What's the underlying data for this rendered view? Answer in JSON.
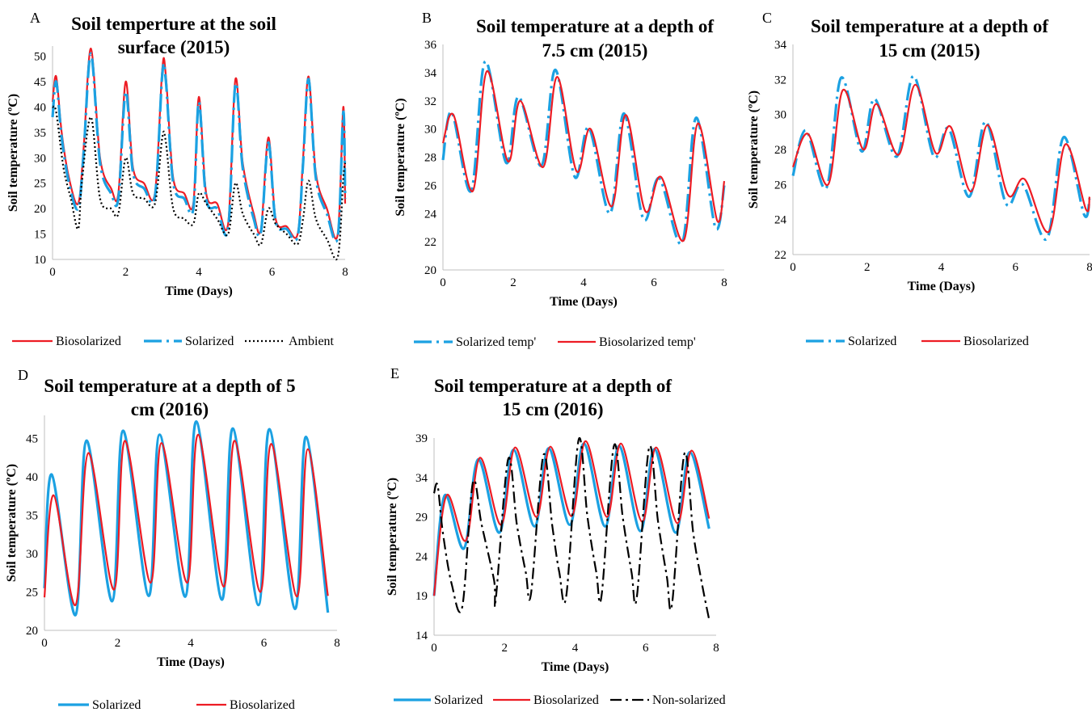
{
  "colors": {
    "biosolarized": "#ed1c24",
    "solarized": "#1ba1e2",
    "ambient": "#000000",
    "axis": "#bfbfbf"
  },
  "chart_data": [
    {
      "panel": "A",
      "type": "line",
      "title_lines": [
        "Soil temperture at the soil",
        "surface (2015)"
      ],
      "xlabel": "Time (Days)",
      "ylabel": "Soil temperature (ºC)",
      "xlim": [
        0,
        8
      ],
      "ylim": [
        10,
        52
      ],
      "xticks": [
        0,
        2,
        4,
        6,
        8
      ],
      "yticks": [
        10,
        15,
        20,
        25,
        30,
        35,
        40,
        45,
        50
      ],
      "grid": false,
      "legend_position": "bottom",
      "series": [
        {
          "name": "Biosolarized",
          "color_key": "biosolarized",
          "dash": "solid",
          "x": [
            0,
            0.1,
            0.25,
            0.45,
            0.7,
            0.85,
            1.05,
            1.3,
            1.6,
            1.8,
            2.0,
            2.2,
            2.5,
            2.8,
            3.0,
            3.1,
            3.3,
            3.6,
            3.85,
            4.0,
            4.2,
            4.5,
            4.8,
            5.0,
            5.2,
            5.5,
            5.7,
            5.9,
            6.1,
            6.4,
            6.7,
            6.85,
            7.0,
            7.2,
            7.5,
            7.8,
            7.95,
            8.0
          ],
          "y": [
            41,
            46,
            35,
            26,
            21,
            32,
            51.5,
            30,
            24,
            23,
            45,
            28,
            25,
            23,
            47.5,
            46,
            26,
            23,
            21,
            42,
            23,
            21,
            17,
            45.5,
            29,
            19,
            16,
            34,
            18,
            16.5,
            15,
            30,
            46,
            27,
            20,
            15,
            40,
            21
          ]
        },
        {
          "name": "Solarized",
          "color_key": "solarized",
          "dash": "long-dash-dot",
          "x": [
            0,
            0.1,
            0.25,
            0.45,
            0.7,
            0.85,
            1.05,
            1.3,
            1.6,
            1.8,
            2.0,
            2.2,
            2.5,
            2.8,
            3.0,
            3.1,
            3.3,
            3.6,
            3.85,
            4.0,
            4.2,
            4.5,
            4.8,
            5.0,
            5.2,
            5.5,
            5.7,
            5.9,
            6.1,
            6.4,
            6.7,
            6.85,
            7.0,
            7.2,
            7.5,
            7.8,
            7.95,
            8.0
          ],
          "y": [
            38,
            45,
            34,
            25,
            20,
            31,
            50.5,
            29,
            23,
            22,
            43,
            27,
            24,
            22.5,
            46.5,
            45,
            25,
            22,
            20,
            41,
            22,
            20,
            16,
            44.5,
            28,
            18,
            15.5,
            33,
            17.5,
            16,
            14.5,
            29,
            45.5,
            26,
            19,
            14.5,
            39,
            22
          ]
        },
        {
          "name": "Ambient",
          "color_key": "ambient",
          "dash": "dotted",
          "x": [
            0,
            0.1,
            0.3,
            0.5,
            0.7,
            0.8,
            1.05,
            1.3,
            1.6,
            1.8,
            2.0,
            2.2,
            2.5,
            2.8,
            3.0,
            3.1,
            3.3,
            3.6,
            3.85,
            4.0,
            4.2,
            4.5,
            4.8,
            5.0,
            5.2,
            5.5,
            5.7,
            5.9,
            6.1,
            6.4,
            6.7,
            6.85,
            7.0,
            7.2,
            7.5,
            7.8,
            7.95,
            8.0
          ],
          "y": [
            40,
            39,
            28,
            22,
            16,
            25,
            38,
            22,
            20,
            19,
            30,
            23,
            22,
            21,
            34,
            33,
            20,
            18,
            17,
            23,
            21,
            18,
            15,
            25,
            19,
            15,
            13,
            20,
            17,
            15,
            13,
            18,
            25.5,
            18,
            14,
            10.5,
            26,
            29
          ]
        }
      ]
    },
    {
      "panel": "B",
      "type": "line",
      "title_lines": [
        "Soil temperature at a depth of",
        "7.5 cm (2015)"
      ],
      "xlabel": "Time (Days)",
      "ylabel": "Soil temperature (ºC)",
      "xlim": [
        0,
        8
      ],
      "ylim": [
        20,
        36
      ],
      "xticks": [
        0,
        2,
        4,
        6,
        8
      ],
      "yticks": [
        20,
        22,
        24,
        26,
        28,
        30,
        32,
        34,
        36
      ],
      "grid": false,
      "legend_position": "bottom",
      "series": [
        {
          "name": "Solarized temp'",
          "color_key": "solarized",
          "dash": "long-dash-dot",
          "x": [
            0,
            0.25,
            0.8,
            1.2,
            1.8,
            2.15,
            2.8,
            3.2,
            3.75,
            4.15,
            4.75,
            5.15,
            5.7,
            6.15,
            6.8,
            7.2,
            7.75,
            8.0
          ],
          "y": [
            27.8,
            31.2,
            25.6,
            34.8,
            27.6,
            32.3,
            27.4,
            34.2,
            26.6,
            30.1,
            24.0,
            31.1,
            23.6,
            26.5,
            21.9,
            30.8,
            23.0,
            26.0
          ]
        },
        {
          "name": "Biosolarized temp'",
          "color_key": "biosolarized",
          "dash": "solid",
          "x": [
            0,
            0.3,
            0.85,
            1.25,
            1.85,
            2.2,
            2.85,
            3.25,
            3.8,
            4.2,
            4.8,
            5.2,
            5.75,
            6.2,
            6.85,
            7.25,
            7.8,
            8.0
          ],
          "y": [
            29.0,
            31.0,
            25.6,
            34.1,
            27.7,
            32.0,
            27.3,
            33.7,
            27.0,
            30.0,
            24.5,
            31.0,
            24.2,
            26.6,
            22.1,
            30.4,
            23.5,
            26.3
          ]
        }
      ]
    },
    {
      "panel": "C",
      "type": "line",
      "title_lines": [
        "Soil temperature at a depth of",
        "15 cm (2015)"
      ],
      "xlabel": "Time (Days)",
      "ylabel": "Soil temperature (ºC)",
      "xlim": [
        0,
        8
      ],
      "ylim": [
        22,
        34
      ],
      "xticks": [
        0,
        2,
        4,
        6,
        8
      ],
      "yticks": [
        22,
        24,
        26,
        28,
        30,
        32,
        34
      ],
      "grid": false,
      "legend_position": "bottom",
      "series": [
        {
          "name": "Solarized",
          "color_key": "solarized",
          "dash": "long-dash-dot",
          "x": [
            0,
            0.35,
            0.9,
            1.3,
            1.85,
            2.2,
            2.8,
            3.25,
            3.8,
            4.2,
            4.75,
            5.2,
            5.75,
            6.2,
            6.85,
            7.3,
            7.85,
            8.0
          ],
          "y": [
            26.5,
            29.1,
            25.8,
            32.1,
            27.9,
            30.9,
            27.6,
            32.2,
            27.6,
            29.2,
            25.3,
            29.6,
            24.9,
            26.0,
            22.9,
            28.7,
            24.3,
            25.2
          ]
        },
        {
          "name": "Biosolarized",
          "color_key": "biosolarized",
          "dash": "solid",
          "x": [
            0,
            0.4,
            0.95,
            1.35,
            1.9,
            2.25,
            2.85,
            3.3,
            3.85,
            4.25,
            4.8,
            5.25,
            5.8,
            6.25,
            6.9,
            7.35,
            7.9,
            8.0
          ],
          "y": [
            27.0,
            28.9,
            26.0,
            31.4,
            28.0,
            30.6,
            27.7,
            31.7,
            27.8,
            29.3,
            25.6,
            29.4,
            25.4,
            26.3,
            23.3,
            28.3,
            24.6,
            25.3
          ]
        }
      ]
    },
    {
      "panel": "D",
      "type": "line",
      "title_lines": [
        "Soil temperature at a depth of 5",
        "cm (2016)"
      ],
      "xlabel": "Time (Days)",
      "ylabel": "Soil temperature (ºC)",
      "xlim": [
        0,
        8
      ],
      "ylim": [
        20,
        48
      ],
      "xticks": [
        0,
        2,
        4,
        6,
        8
      ],
      "yticks": [
        20,
        25,
        30,
        35,
        40,
        45
      ],
      "grid": false,
      "legend_position": "bottom",
      "series": [
        {
          "name": "Solarized",
          "color_key": "solarized",
          "dash": "solid",
          "x": [
            0,
            0.2,
            0.85,
            1.15,
            1.85,
            2.15,
            2.85,
            3.15,
            3.85,
            4.15,
            4.85,
            5.15,
            5.85,
            6.15,
            6.85,
            7.15,
            7.75
          ],
          "y": [
            25.5,
            40.3,
            22.0,
            44.7,
            23.8,
            46.0,
            24.5,
            45.5,
            24.4,
            47.2,
            24.0,
            46.3,
            23.3,
            46.2,
            22.8,
            45.2,
            22.3
          ]
        },
        {
          "name": "Biosolarized",
          "color_key": "biosolarized",
          "dash": "solid",
          "x": [
            0,
            0.25,
            0.85,
            1.2,
            1.9,
            2.2,
            2.9,
            3.2,
            3.9,
            4.2,
            4.9,
            5.2,
            5.9,
            6.2,
            6.9,
            7.2,
            7.75
          ],
          "y": [
            24.3,
            37.6,
            23.3,
            43.1,
            25.3,
            44.7,
            26.2,
            44.4,
            26.2,
            45.5,
            25.7,
            44.7,
            25.0,
            44.3,
            24.4,
            43.6,
            24.5
          ]
        }
      ]
    },
    {
      "panel": "E",
      "type": "line",
      "title_lines": [
        "Soil temperature at a depth of",
        "15 cm (2016)"
      ],
      "xlabel": "Time (Days)",
      "ylabel": "Soil temperature (ºC)",
      "xlim": [
        0,
        8
      ],
      "ylim": [
        14,
        39
      ],
      "xticks": [
        0,
        2,
        4,
        6,
        8
      ],
      "yticks": [
        14,
        19,
        24,
        29,
        34,
        39
      ],
      "grid": false,
      "legend_position": "bottom",
      "series": [
        {
          "name": "Solarized",
          "color_key": "solarized",
          "dash": "solid",
          "x": [
            0,
            0.3,
            0.85,
            1.25,
            1.85,
            2.25,
            2.85,
            3.25,
            3.85,
            4.25,
            4.85,
            5.25,
            5.85,
            6.25,
            6.85,
            7.25,
            7.8
          ],
          "y": [
            19.0,
            31.7,
            25.0,
            36.3,
            27.0,
            37.5,
            27.8,
            37.7,
            28.0,
            38.3,
            27.8,
            38.0,
            27.2,
            37.6,
            27.0,
            37.2,
            27.5
          ]
        },
        {
          "name": "Biosolarized",
          "color_key": "biosolarized",
          "dash": "solid",
          "x": [
            0,
            0.35,
            0.9,
            1.3,
            1.9,
            2.3,
            2.9,
            3.3,
            3.9,
            4.3,
            4.9,
            5.3,
            5.9,
            6.3,
            6.9,
            7.3,
            7.8
          ],
          "y": [
            19.0,
            31.7,
            26.0,
            36.5,
            28.0,
            37.8,
            29.0,
            37.9,
            29.1,
            38.6,
            29.0,
            38.3,
            28.4,
            37.8,
            28.2,
            37.4,
            28.8
          ]
        },
        {
          "name": "Non-solarized",
          "color_key": "ambient",
          "dash": "dash-dot",
          "x": [
            0,
            0.1,
            0.25,
            0.5,
            0.8,
            1.1,
            1.35,
            1.7,
            1.75,
            2.1,
            2.35,
            2.6,
            2.75,
            3.1,
            3.35,
            3.55,
            3.75,
            4.1,
            4.35,
            4.6,
            4.75,
            5.1,
            5.35,
            5.6,
            5.75,
            6.1,
            6.35,
            6.6,
            6.75,
            7.1,
            7.35,
            7.6,
            7.8
          ],
          "y": [
            32.0,
            33.0,
            27.0,
            20.5,
            17.6,
            33.3,
            28.0,
            21.0,
            18.5,
            36.3,
            28.0,
            22.0,
            19.3,
            36.8,
            28.0,
            22.0,
            19.0,
            38.8,
            29.0,
            22.0,
            19.0,
            38.0,
            29.0,
            22.0,
            18.8,
            37.8,
            28.5,
            21.5,
            18.0,
            37.0,
            27.0,
            20.5,
            16.0
          ]
        }
      ]
    }
  ]
}
